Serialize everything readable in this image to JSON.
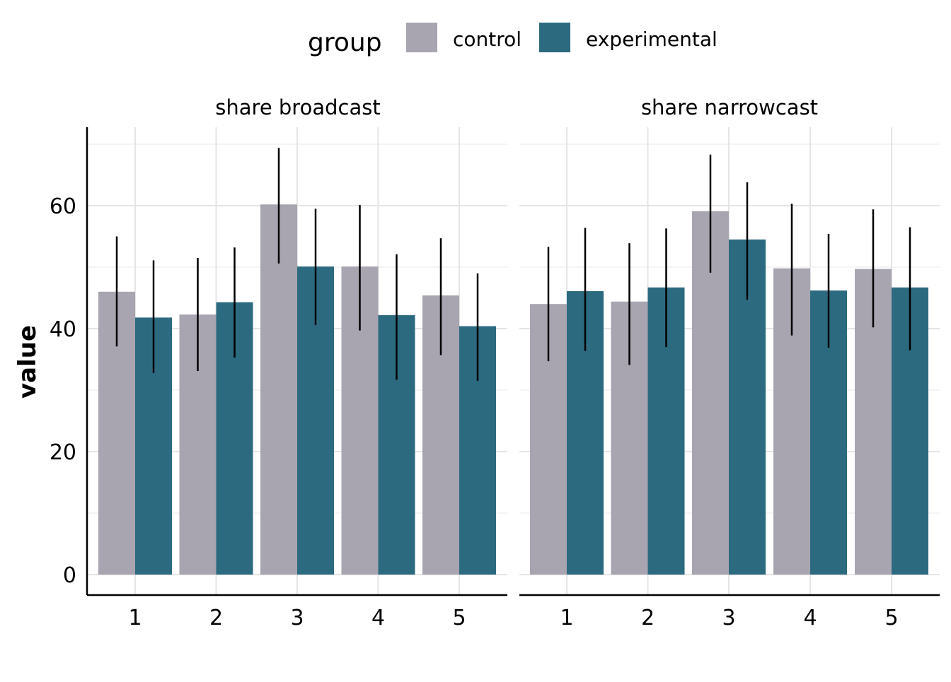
{
  "chart_data": {
    "type": "bar",
    "legend": {
      "title": "group",
      "position": "top",
      "entries": [
        {
          "name": "control",
          "color": "#a8a4b0"
        },
        {
          "name": "experimental",
          "color": "#2c6a80"
        }
      ]
    },
    "ylabel": "value",
    "xlabel": "",
    "ylim": [
      -3.5,
      73
    ],
    "yticks": [
      0,
      20,
      40,
      60
    ],
    "grid": true,
    "categories": [
      "1",
      "2",
      "3",
      "4",
      "5"
    ],
    "facets": [
      {
        "label": "share broadcast",
        "series": [
          {
            "name": "control",
            "values": [
              46,
              42.3,
              60.2,
              50.1,
              45.4
            ],
            "err_low": [
              37.1,
              33.1,
              50.6,
              39.7,
              35.7
            ],
            "err_high": [
              55,
              51.5,
              69.4,
              60.1,
              54.7
            ]
          },
          {
            "name": "experimental",
            "values": [
              41.8,
              44.3,
              50.1,
              42.2,
              40.4
            ],
            "err_low": [
              32.8,
              35.3,
              40.6,
              31.7,
              31.5
            ],
            "err_high": [
              51.1,
              53.2,
              59.5,
              52.1,
              49
            ]
          }
        ]
      },
      {
        "label": "share narrowcast",
        "series": [
          {
            "name": "control",
            "values": [
              44,
              44.4,
              59.1,
              49.8,
              49.7
            ],
            "err_low": [
              34.7,
              34.1,
              49.1,
              38.9,
              40.2
            ],
            "err_high": [
              53.3,
              53.9,
              68.3,
              60.3,
              59.4
            ]
          },
          {
            "name": "experimental",
            "values": [
              46.1,
              46.7,
              54.5,
              46.2,
              46.7
            ],
            "err_low": [
              36.4,
              37,
              44.7,
              36.9,
              36.5
            ],
            "err_high": [
              56.4,
              56.3,
              63.8,
              55.4,
              56.5
            ]
          }
        ]
      }
    ]
  }
}
